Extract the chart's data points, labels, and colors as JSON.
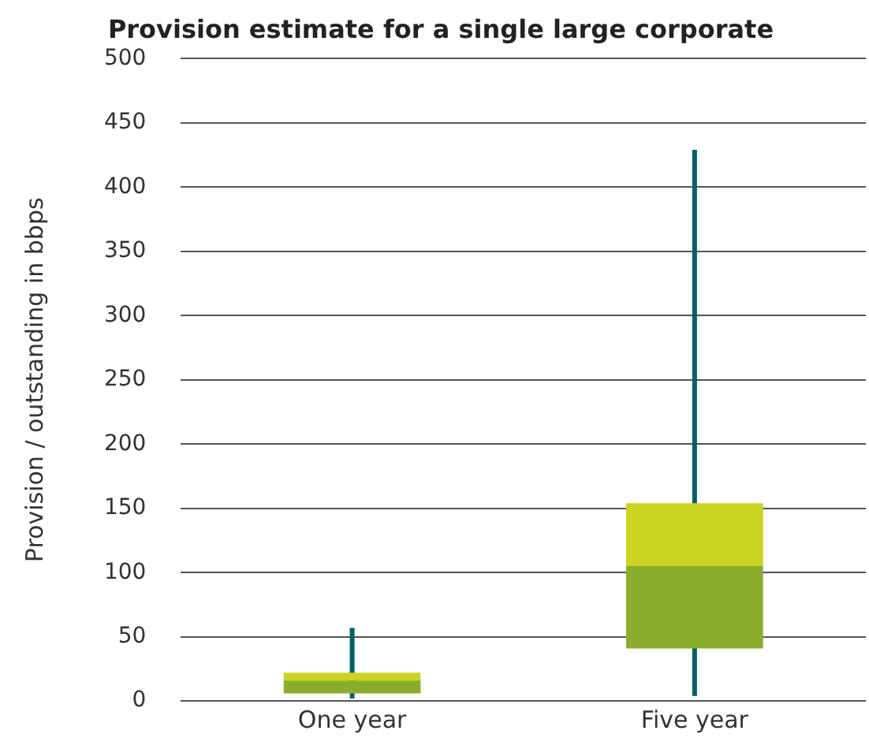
{
  "chart_data": {
    "type": "box",
    "title": "Provision estimate for a single large corporate",
    "ylabel": "Provision / outstanding in bbps",
    "categories": [
      "One year",
      "Five year"
    ],
    "series": [
      {
        "color": "#8aad2e",
        "boxes": [
          {
            "low": 2,
            "q1": 6,
            "median": 16,
            "q3": 22,
            "high": 57
          },
          {
            "low": 4,
            "q1": 41,
            "median": 105,
            "q3": 154,
            "high": 429
          }
        ]
      }
    ],
    "ylim": [
      0,
      500
    ],
    "yticks": [
      0,
      50,
      100,
      150,
      200,
      250,
      300,
      350,
      400,
      450,
      500
    ],
    "grid": "y",
    "legend": false
  }
}
